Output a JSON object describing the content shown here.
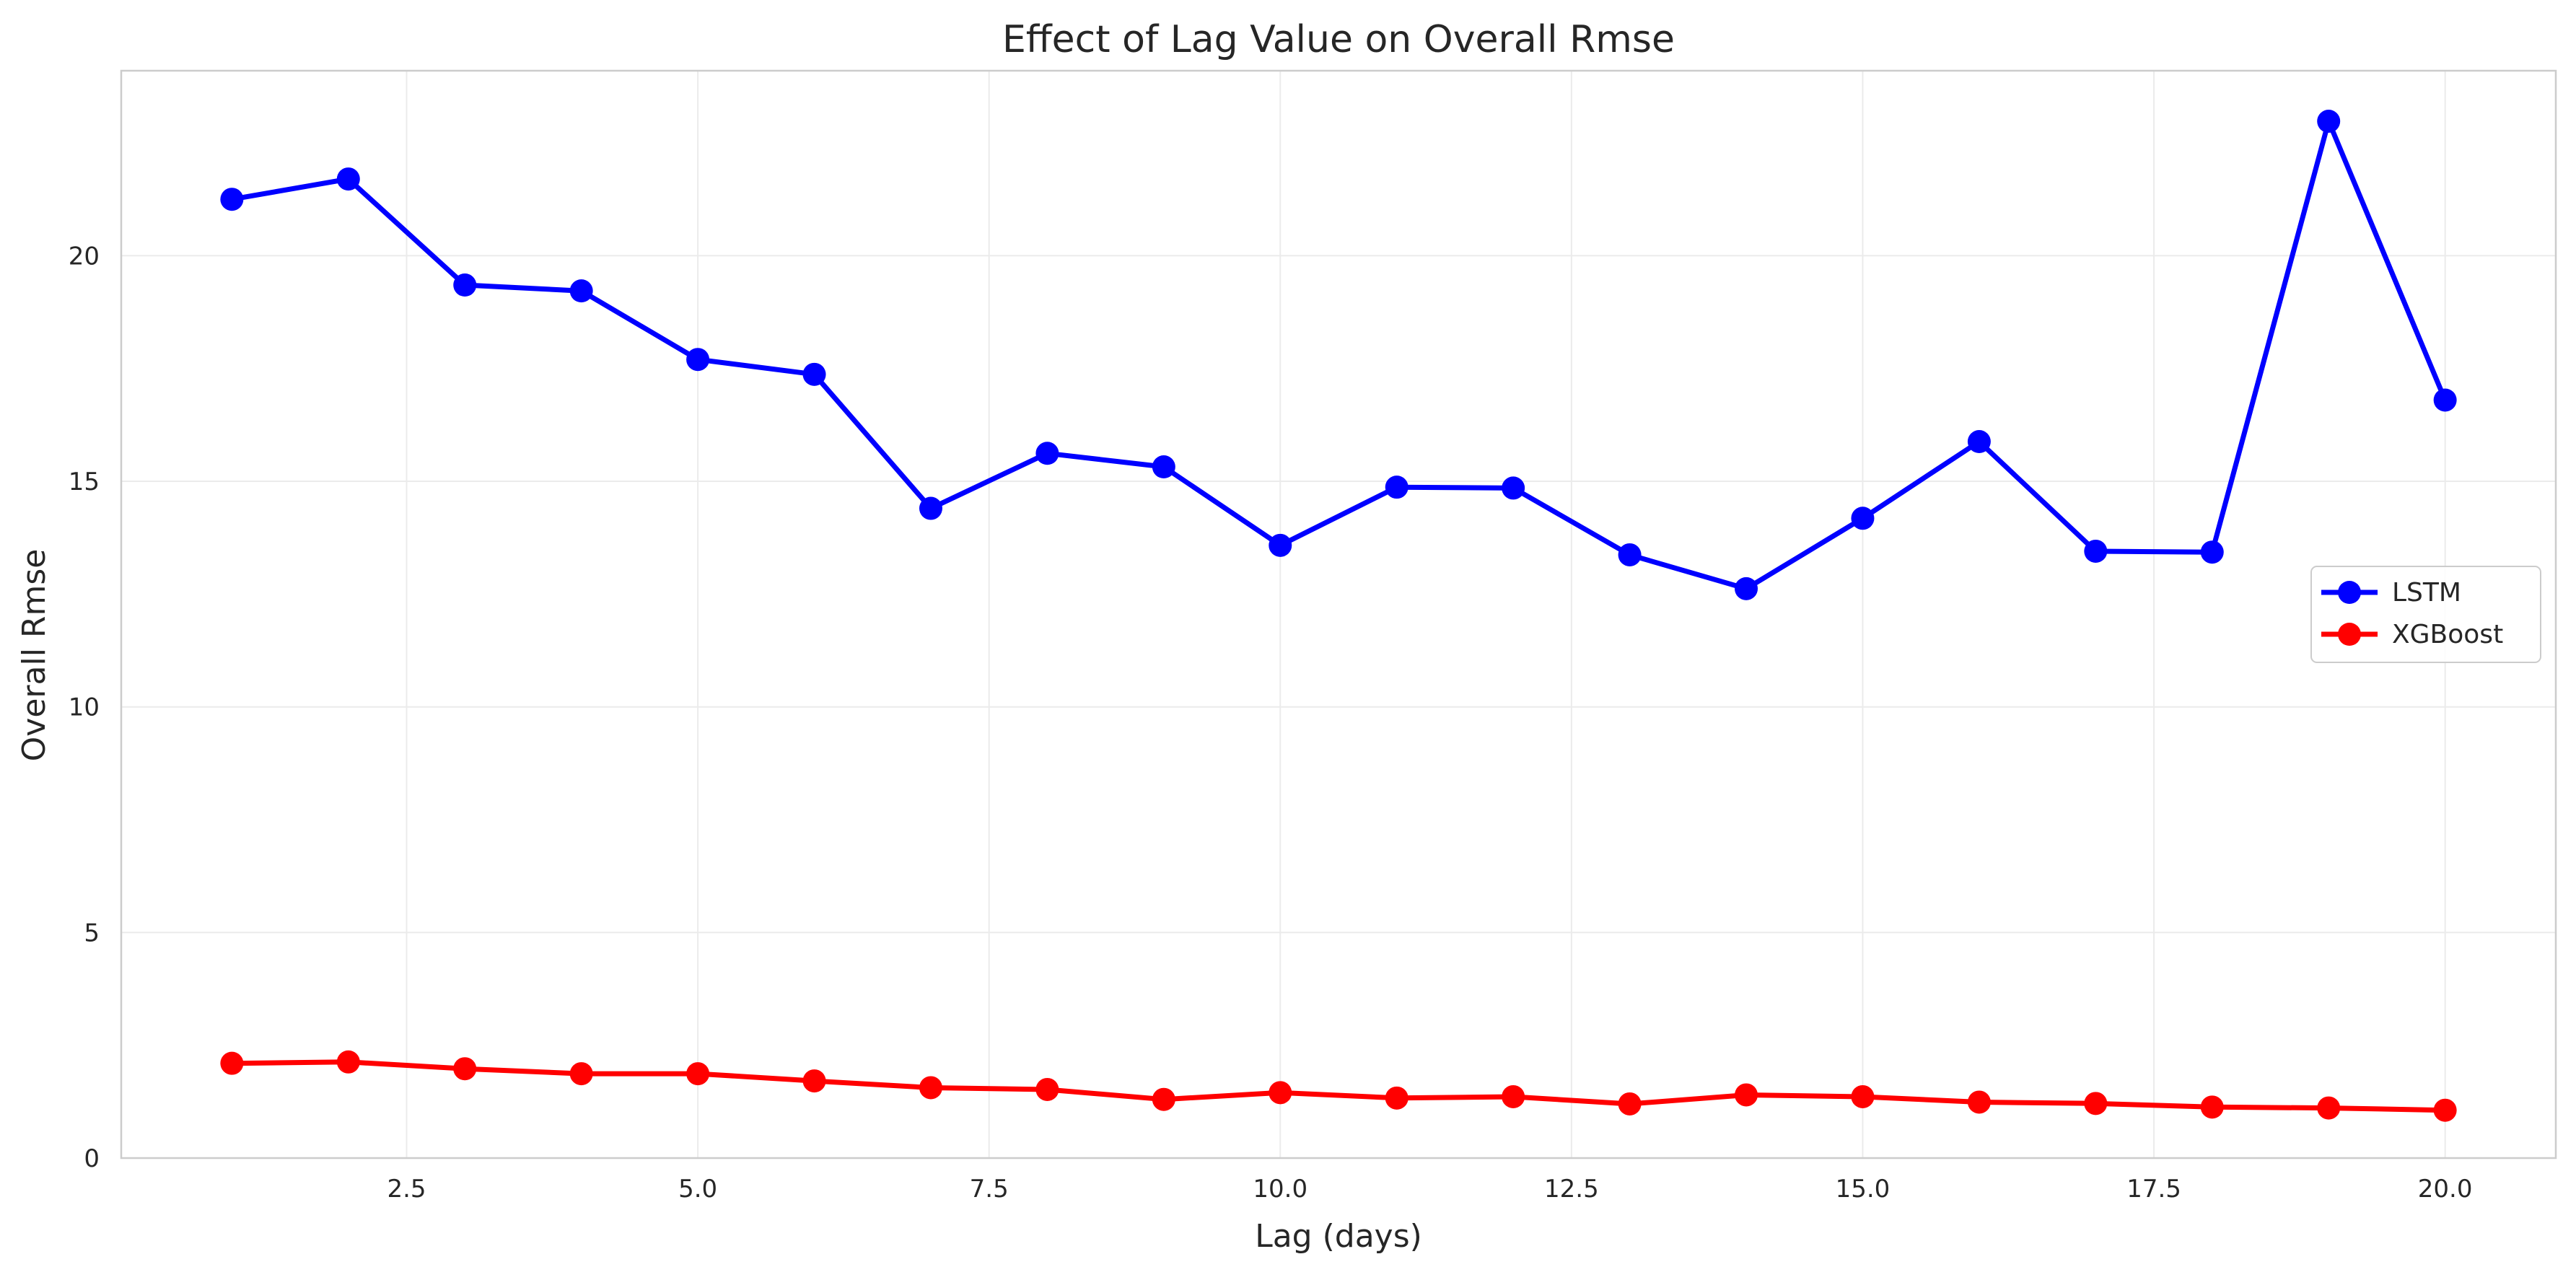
{
  "chart_data": {
    "type": "line",
    "title": "Effect of Lag Value on Overall Rmse",
    "xlabel": "Lag (days)",
    "ylabel": "Overall Rmse",
    "x": [
      1,
      2,
      3,
      4,
      5,
      6,
      7,
      8,
      9,
      10,
      11,
      12,
      13,
      14,
      15,
      16,
      17,
      18,
      19,
      20
    ],
    "series": [
      {
        "name": "LSTM",
        "color": "#0000ff",
        "marker": "circle",
        "values": [
          21.25,
          21.7,
          19.35,
          19.22,
          17.7,
          17.37,
          14.4,
          15.62,
          15.32,
          13.58,
          14.87,
          14.85,
          13.37,
          12.62,
          14.18,
          15.88,
          13.45,
          13.43,
          22.98,
          16.8
        ]
      },
      {
        "name": "XGBoost",
        "color": "#ff0000",
        "marker": "circle",
        "values": [
          2.1,
          2.13,
          1.98,
          1.87,
          1.87,
          1.71,
          1.56,
          1.52,
          1.3,
          1.45,
          1.33,
          1.36,
          1.2,
          1.4,
          1.36,
          1.24,
          1.21,
          1.13,
          1.11,
          1.06
        ]
      }
    ],
    "xlim": [
      0.05,
      20.95
    ],
    "ylim": [
      0,
      24.1
    ],
    "xticks": [
      2.5,
      5.0,
      7.5,
      10.0,
      12.5,
      15.0,
      17.5,
      20.0
    ],
    "xtick_labels": [
      "2.5",
      "5.0",
      "7.5",
      "10.0",
      "12.5",
      "15.0",
      "17.5",
      "20.0"
    ],
    "yticks": [
      0,
      5,
      10,
      15,
      20
    ],
    "ytick_labels": [
      "0",
      "5",
      "10",
      "15",
      "20"
    ],
    "grid": true,
    "legend_position": "center-right"
  }
}
